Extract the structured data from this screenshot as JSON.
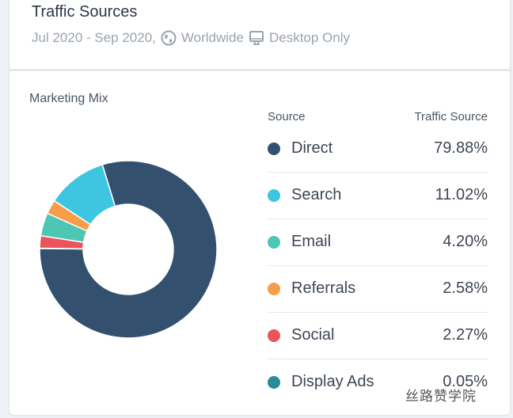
{
  "header": {
    "title": "Traffic Sources",
    "date_range": "Jul 2020 - Sep 2020,",
    "region": "Worldwide",
    "device": "Desktop Only"
  },
  "watermark": "丝路赞学院",
  "chart_data": {
    "type": "pie",
    "title": "Marketing Mix",
    "columns": [
      "Source",
      "Traffic Source"
    ],
    "slices": [
      {
        "label": "Direct",
        "value": 79.88,
        "display": "79.88%",
        "color": "#34506f"
      },
      {
        "label": "Search",
        "value": 11.02,
        "display": "11.02%",
        "color": "#3ec6e0"
      },
      {
        "label": "Email",
        "value": 4.2,
        "display": "4.20%",
        "color": "#4dc6b3"
      },
      {
        "label": "Referrals",
        "value": 2.58,
        "display": "2.58%",
        "color": "#f79d4a"
      },
      {
        "label": "Social",
        "value": 2.27,
        "display": "2.27%",
        "color": "#e8555a"
      },
      {
        "label": "Display Ads",
        "value": 0.05,
        "display": "0.05%",
        "color": "#2a8a96"
      }
    ]
  }
}
